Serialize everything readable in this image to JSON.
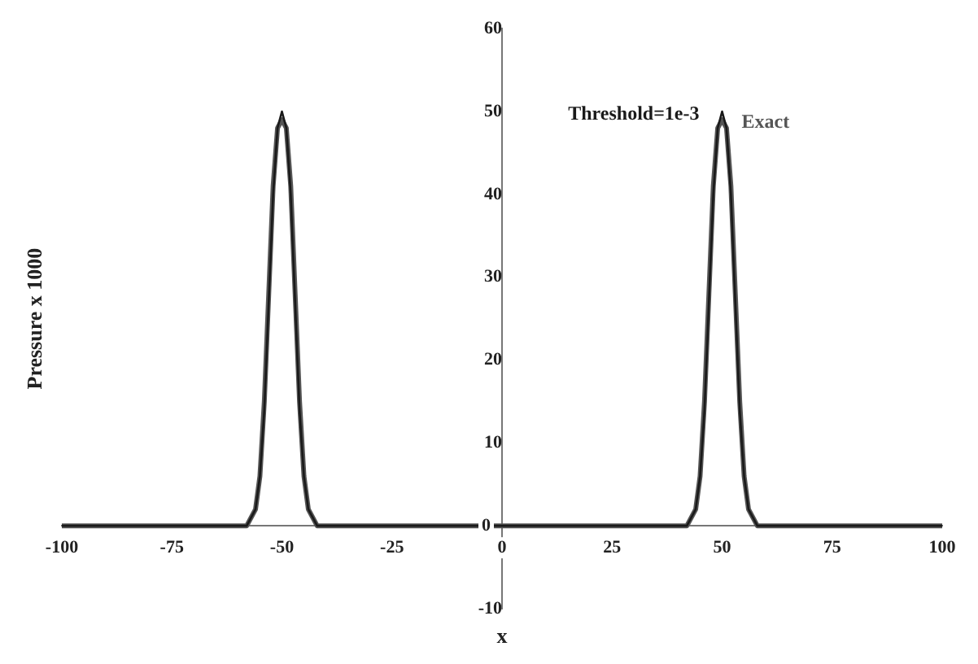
{
  "chart_data": {
    "type": "line",
    "xlabel": "x",
    "ylabel": "Pressure x 1000",
    "xlim": [
      -100,
      100
    ],
    "xticks": [
      -100,
      -75,
      -50,
      -25,
      0,
      25,
      50,
      75,
      100
    ],
    "ylim": [
      -10,
      60
    ],
    "yticks": [
      -10,
      0,
      10,
      20,
      30,
      40,
      50,
      60
    ],
    "grid": false,
    "legend": false,
    "marker": "none",
    "line_style": "solid",
    "series": [
      {
        "name": "Threshold=1e-3",
        "color": "#1a1a1a",
        "x": [
          -100,
          -60,
          -58,
          -56,
          -55,
          -54,
          -53,
          -52,
          -51,
          -50,
          -49,
          -48,
          -47,
          -46,
          -45,
          -44,
          -42,
          -40,
          0,
          40,
          42,
          44,
          45,
          46,
          47,
          48,
          49,
          50,
          51,
          52,
          53,
          54,
          55,
          56,
          58,
          60,
          100
        ],
        "values": [
          0,
          0,
          0,
          2,
          6,
          14,
          27,
          40,
          48,
          50,
          48,
          40,
          27,
          14,
          6,
          2,
          0,
          0,
          0,
          0,
          0,
          2,
          6,
          14,
          27,
          40,
          48,
          50,
          48,
          40,
          27,
          14,
          6,
          2,
          0,
          0,
          0
        ]
      },
      {
        "name": "Exact",
        "color": "#555555",
        "x": [
          -100,
          -60,
          -58,
          -56,
          -55,
          -54,
          -53,
          -52,
          -51,
          -50,
          -49,
          -48,
          -47,
          -46,
          -45,
          -44,
          -42,
          -40,
          0,
          40,
          42,
          44,
          45,
          46,
          47,
          48,
          49,
          50,
          51,
          52,
          53,
          54,
          55,
          56,
          58,
          60,
          100
        ],
        "values": [
          0,
          0,
          0,
          2,
          6,
          15,
          28,
          41,
          48,
          49,
          48,
          41,
          28,
          15,
          6,
          2,
          0,
          0,
          0,
          0,
          0,
          2,
          6,
          15,
          28,
          41,
          48,
          49,
          48,
          41,
          28,
          15,
          6,
          2,
          0,
          0,
          0
        ]
      }
    ]
  }
}
